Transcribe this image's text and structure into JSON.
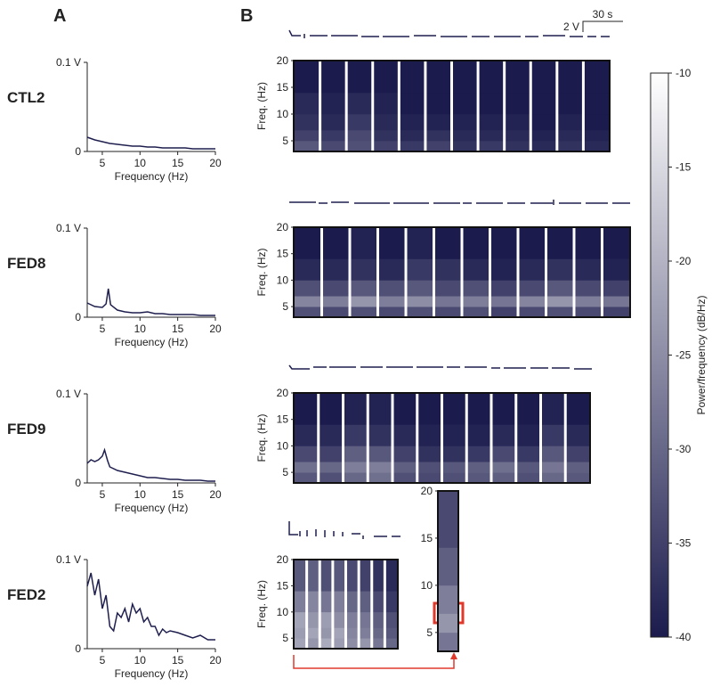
{
  "panel_labels": [
    "A",
    "B"
  ],
  "scale_bar": {
    "voltage": "2 V",
    "time": "30 s"
  },
  "chart_data": [
    {
      "type": "line",
      "title": "CTL2",
      "xlabel": "Frequency (Hz)",
      "color": "#1f1f4f",
      "x": [
        3,
        4,
        5,
        6,
        7,
        8,
        9,
        10,
        11,
        12,
        13,
        14,
        15,
        16,
        17,
        18,
        19,
        20
      ],
      "values": [
        0.016,
        0.013,
        0.011,
        0.009,
        0.008,
        0.007,
        0.006,
        0.006,
        0.005,
        0.005,
        0.004,
        0.004,
        0.004,
        0.004,
        0.003,
        0.003,
        0.003,
        0.003
      ],
      "xlim": [
        3,
        20
      ],
      "ylim": [
        0,
        0.1
      ],
      "xticks": [
        5,
        10,
        15,
        20
      ],
      "yticks": [
        0,
        {
          "value": 0.1,
          "label": "0.1 V"
        }
      ]
    },
    {
      "type": "line",
      "title": "FED8",
      "xlabel": "Frequency (Hz)",
      "color": "#1f1f4f",
      "x": [
        3,
        4,
        5,
        5.5,
        5.8,
        6.1,
        7,
        8,
        9,
        10,
        11,
        12,
        13,
        14,
        15,
        16,
        17,
        18,
        19,
        20
      ],
      "values": [
        0.016,
        0.012,
        0.011,
        0.015,
        0.032,
        0.014,
        0.008,
        0.006,
        0.005,
        0.005,
        0.006,
        0.004,
        0.004,
        0.003,
        0.003,
        0.003,
        0.003,
        0.002,
        0.002,
        0.002
      ],
      "xlim": [
        3,
        20
      ],
      "ylim": [
        0,
        0.1
      ],
      "xticks": [
        5,
        10,
        15,
        20
      ],
      "yticks": [
        0,
        {
          "value": 0.1,
          "label": "0.1 V"
        }
      ]
    },
    {
      "type": "line",
      "title": "FED9",
      "xlabel": "Frequency (Hz)",
      "color": "#1f1f4f",
      "x": [
        3,
        3.5,
        4,
        4.5,
        5,
        5.3,
        5.7,
        6,
        7,
        8,
        9,
        10,
        11,
        12,
        13,
        14,
        15,
        16,
        17,
        18,
        19,
        20
      ],
      "values": [
        0.022,
        0.026,
        0.024,
        0.026,
        0.03,
        0.037,
        0.025,
        0.018,
        0.014,
        0.012,
        0.01,
        0.008,
        0.006,
        0.006,
        0.005,
        0.004,
        0.004,
        0.003,
        0.003,
        0.003,
        0.002,
        0.002
      ],
      "xlim": [
        3,
        20
      ],
      "ylim": [
        0,
        0.1
      ],
      "xticks": [
        5,
        10,
        15,
        20
      ],
      "yticks": [
        0,
        {
          "value": 0.1,
          "label": "0.1 V"
        }
      ]
    },
    {
      "type": "line",
      "title": "FED2",
      "xlabel": "Frequency (Hz)",
      "color": "#1f1f4f",
      "x": [
        3,
        3.5,
        4,
        4.5,
        5,
        5.5,
        6,
        6.5,
        7,
        7.5,
        8,
        8.5,
        9,
        9.5,
        10,
        10.5,
        11,
        11.5,
        12,
        12.5,
        13,
        13.5,
        14,
        15,
        16,
        17,
        18,
        19,
        20
      ],
      "values": [
        0.07,
        0.085,
        0.06,
        0.078,
        0.045,
        0.06,
        0.025,
        0.02,
        0.04,
        0.035,
        0.045,
        0.03,
        0.05,
        0.04,
        0.045,
        0.03,
        0.035,
        0.025,
        0.025,
        0.015,
        0.022,
        0.018,
        0.02,
        0.018,
        0.015,
        0.012,
        0.015,
        0.01,
        0.01
      ],
      "xlim": [
        3,
        20
      ],
      "ylim": [
        0,
        0.1
      ],
      "xticks": [
        5,
        10,
        15,
        20
      ],
      "yticks": [
        0,
        {
          "value": 0.1,
          "label": "0.1 V"
        }
      ]
    },
    {
      "type": "heatmap",
      "ylabel": "Freq. (Hz)",
      "ylim": [
        3,
        20
      ],
      "yticks": [
        5,
        10,
        15,
        20
      ],
      "ybins": [
        3,
        5,
        7,
        10,
        14,
        20
      ],
      "values": [
        [
          -32,
          -34,
          -33,
          -35,
          -36,
          -35,
          -37,
          -36,
          -37,
          -38,
          -37,
          -38
        ],
        [
          -35,
          -36,
          -34,
          -37,
          -38,
          -37,
          -38,
          -38,
          -38,
          -39,
          -38,
          -39
        ],
        [
          -37,
          -38,
          -36,
          -38,
          -39,
          -39,
          -39,
          -39,
          -39,
          -40,
          -39,
          -40
        ],
        [
          -38,
          -39,
          -38,
          -39,
          -40,
          -40,
          -40,
          -40,
          -40,
          -40,
          -40,
          -40
        ],
        [
          -40,
          -40,
          -40,
          -40,
          -40,
          -40,
          -40,
          -40,
          -40,
          -40,
          -40,
          -40
        ]
      ]
    },
    {
      "type": "heatmap",
      "ylabel": "Freq. (Hz)",
      "ylim": [
        3,
        20
      ],
      "yticks": [
        5,
        10,
        15,
        20
      ],
      "ybins": [
        3,
        5,
        7,
        10,
        14,
        20
      ],
      "values": [
        [
          -33,
          -34,
          -33,
          -34,
          -33,
          -34,
          -33,
          -35,
          -34,
          -33,
          -34,
          -35
        ],
        [
          -26,
          -27,
          -24,
          -27,
          -25,
          -28,
          -27,
          -28,
          -26,
          -24,
          -27,
          -28
        ],
        [
          -33,
          -34,
          -32,
          -33,
          -32,
          -34,
          -33,
          -35,
          -34,
          -32,
          -34,
          -35
        ],
        [
          -38,
          -38,
          -37,
          -38,
          -36,
          -37,
          -38,
          -39,
          -38,
          -37,
          -38,
          -39
        ],
        [
          -40,
          -40,
          -39,
          -40,
          -39,
          -40,
          -40,
          -40,
          -40,
          -40,
          -40,
          -40
        ]
      ]
    },
    {
      "type": "heatmap",
      "ylabel": "Freq. (Hz)",
      "ylim": [
        3,
        20
      ],
      "yticks": [
        5,
        10,
        15,
        20
      ],
      "ybins": [
        3,
        5,
        7,
        10,
        14,
        20
      ],
      "values": [
        [
          -32,
          -33,
          -30,
          -29,
          -33,
          -34,
          -33,
          -32,
          -31,
          -33,
          -30,
          -32
        ],
        [
          -29,
          -30,
          -27,
          -27,
          -31,
          -33,
          -32,
          -31,
          -29,
          -32,
          -28,
          -31
        ],
        [
          -34,
          -35,
          -31,
          -32,
          -35,
          -37,
          -37,
          -36,
          -34,
          -36,
          -32,
          -35
        ],
        [
          -38,
          -38,
          -36,
          -37,
          -38,
          -39,
          -39,
          -39,
          -38,
          -39,
          -36,
          -38
        ],
        [
          -40,
          -40,
          -39,
          -39,
          -40,
          -40,
          -40,
          -40,
          -40,
          -40,
          -39,
          -40
        ]
      ]
    },
    {
      "type": "heatmap",
      "ylabel": "Freq. (Hz)",
      "ylim": [
        3,
        20
      ],
      "yticks": [
        5,
        10,
        15,
        20
      ],
      "ybins": [
        3,
        5,
        7,
        10,
        14,
        20
      ],
      "values": [
        [
          -22,
          -24,
          -21,
          -23,
          -25,
          -24,
          -28,
          -30
        ],
        [
          -23,
          -22,
          -24,
          -22,
          -26,
          -27,
          -30,
          -32
        ],
        [
          -22,
          -24,
          -23,
          -25,
          -27,
          -28,
          -31,
          -33
        ],
        [
          -27,
          -26,
          -28,
          -27,
          -30,
          -31,
          -34,
          -36
        ],
        [
          -32,
          -31,
          -33,
          -32,
          -34,
          -35,
          -37,
          -38
        ]
      ]
    },
    {
      "type": "heatmap",
      "ylim": [
        3,
        20
      ],
      "yticks": [
        5,
        10,
        15,
        20
      ],
      "ybins": [
        3,
        5,
        7,
        10,
        14,
        20
      ],
      "values": [
        [
          -28
        ],
        [
          -24
        ],
        [
          -27
        ],
        [
          -31
        ],
        [
          -34
        ]
      ]
    },
    {
      "type": "colorbar",
      "label": "Power/frequency (dB/Hz)",
      "clim": [
        -40,
        -10
      ],
      "colors": [
        "#1b1b4d",
        "#ffffff"
      ],
      "ticks": [
        -10,
        -15,
        -20,
        -25,
        -30,
        -35,
        -40
      ]
    }
  ]
}
